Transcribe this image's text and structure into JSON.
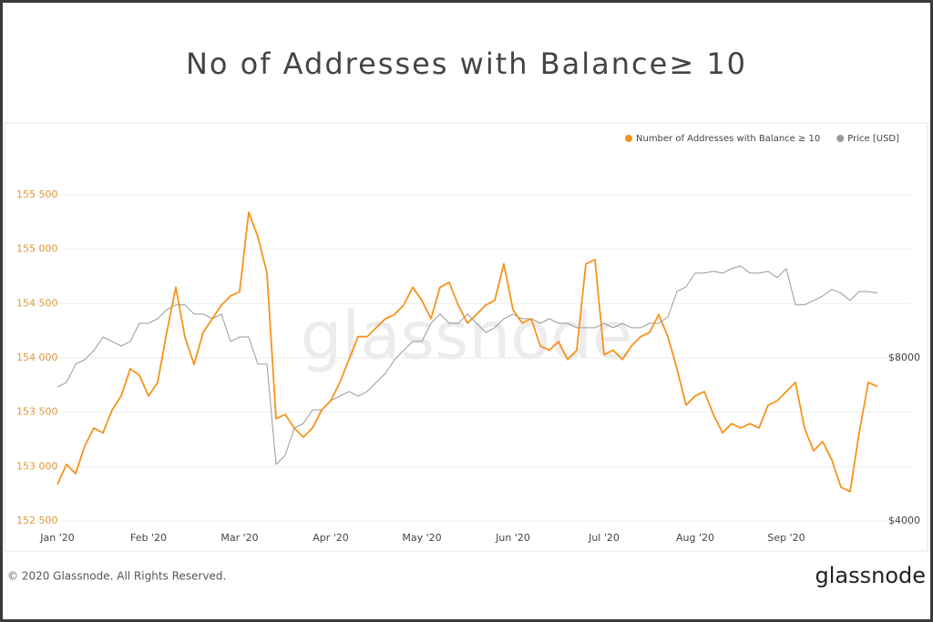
{
  "chart_data": {
    "type": "line",
    "title": "No of Addresses with Balance≥ 10",
    "watermark": "glassnode",
    "footer": "© 2020 Glassnode. All Rights Reserved.",
    "brand": "glassnode",
    "categories": [
      "Jan '20",
      null,
      null,
      null,
      null,
      null,
      null,
      null,
      null,
      null,
      "Feb '20",
      null,
      null,
      null,
      null,
      null,
      null,
      null,
      null,
      null,
      "Mar '20",
      null,
      null,
      null,
      null,
      null,
      null,
      null,
      null,
      null,
      "Apr '20",
      null,
      null,
      null,
      null,
      null,
      null,
      null,
      null,
      null,
      "May '20",
      null,
      null,
      null,
      null,
      null,
      null,
      null,
      null,
      null,
      "Jun '20",
      null,
      null,
      null,
      null,
      null,
      null,
      null,
      null,
      null,
      "Jul '20",
      null,
      null,
      null,
      null,
      null,
      null,
      null,
      null,
      null,
      "Aug '20",
      null,
      null,
      null,
      null,
      null,
      null,
      null,
      null,
      null,
      "Sep '20",
      null,
      null,
      null,
      null,
      null,
      null,
      null,
      null,
      null,
      null
    ],
    "series": [
      {
        "name": "Number of Addresses with Balance ≥ 10",
        "color": "#f7931a",
        "axis": "y",
        "values": [
          152835,
          153020,
          152935,
          153190,
          153355,
          153310,
          153520,
          153650,
          153900,
          153840,
          153650,
          153775,
          154235,
          154650,
          154190,
          153940,
          154235,
          154360,
          154485,
          154570,
          154610,
          155340,
          155115,
          154780,
          153440,
          153480,
          153355,
          153270,
          153355,
          153520,
          153605,
          153775,
          153985,
          154195,
          154195,
          154280,
          154360,
          154400,
          154485,
          154650,
          154530,
          154360,
          154650,
          154695,
          154485,
          154320,
          154400,
          154485,
          154530,
          154865,
          154445,
          154320,
          154360,
          154110,
          154070,
          154150,
          153985,
          154070,
          154865,
          154905,
          154030,
          154070,
          153985,
          154110,
          154195,
          154235,
          154400,
          154195,
          153900,
          153565,
          153650,
          153690,
          153480,
          153310,
          153395,
          153355,
          153395,
          153355,
          153565,
          153605,
          153690,
          153775,
          153355,
          153145,
          153230,
          153060,
          152810,
          152770,
          153310,
          153775,
          153735
        ]
      },
      {
        "name": "Price [USD]",
        "color": "#9a9a9a",
        "axis": "y2",
        "values": [
          7285,
          7400,
          7845,
          7955,
          8180,
          8515,
          8405,
          8290,
          8405,
          8850,
          8850,
          8960,
          9185,
          9300,
          9300,
          9075,
          9075,
          8960,
          9075,
          8405,
          8515,
          8515,
          7845,
          7845,
          5385,
          5610,
          6280,
          6390,
          6725,
          6725,
          6950,
          7060,
          7175,
          7060,
          7175,
          7400,
          7620,
          7955,
          8180,
          8405,
          8405,
          8850,
          9075,
          8850,
          8850,
          9075,
          8850,
          8625,
          8740,
          8960,
          9075,
          8960,
          8960,
          8850,
          8960,
          8850,
          8850,
          8740,
          8740,
          8740,
          8850,
          8740,
          8850,
          8740,
          8740,
          8850,
          8850,
          9005,
          9630,
          9745,
          10080,
          10080,
          10125,
          10080,
          10190,
          10260,
          10080,
          10080,
          10125,
          9970,
          10190,
          9300,
          9300,
          9410,
          9520,
          9680,
          9590,
          9410,
          9630,
          9630,
          9590
        ]
      }
    ],
    "ylim": [
      152500,
      155500
    ],
    "yticks": [
      {
        "value": 152500,
        "label": "152 500"
      },
      {
        "value": 153000,
        "label": "153 000"
      },
      {
        "value": 153500,
        "label": "153 500"
      },
      {
        "value": 154000,
        "label": "154 000"
      },
      {
        "value": 154500,
        "label": "154 500"
      },
      {
        "value": 155000,
        "label": "155 000"
      },
      {
        "value": 155500,
        "label": "155 500"
      }
    ],
    "y2lim": [
      4000,
      12000
    ],
    "y2ticks": [
      {
        "value": 4000,
        "label": "$4000"
      },
      {
        "value": 8000,
        "label": "$8000"
      }
    ],
    "grid": true
  }
}
